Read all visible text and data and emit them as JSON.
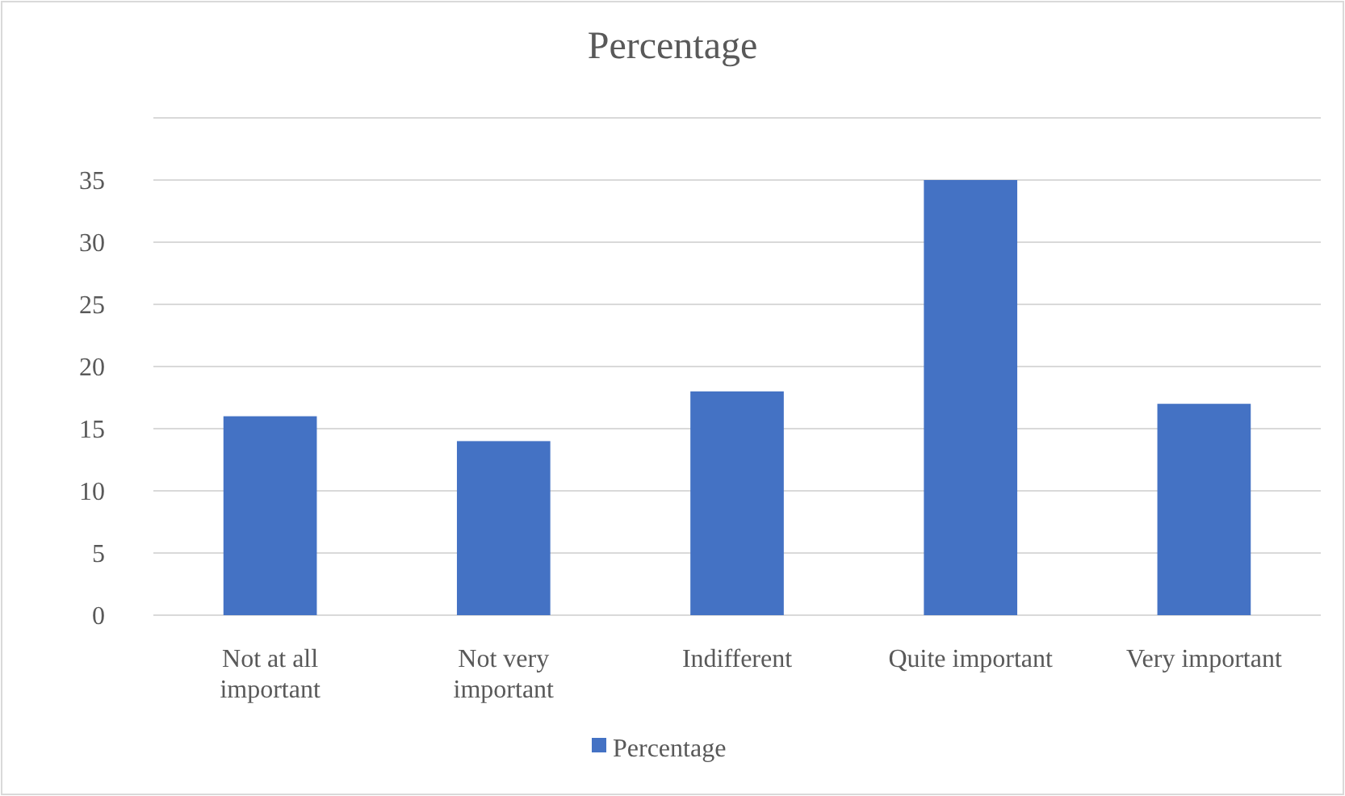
{
  "chart_data": {
    "type": "bar",
    "title": "Percentage",
    "categories": [
      "Not at all important",
      "Not very important",
      "Indifferent",
      "Quite important",
      "Very important"
    ],
    "series": [
      {
        "name": "Percentage",
        "color": "#4472c4",
        "values": [
          16,
          14,
          18,
          35,
          17
        ]
      }
    ],
    "ylim": [
      0,
      40
    ],
    "yticks": [
      0,
      5,
      10,
      15,
      20,
      25,
      30,
      35
    ],
    "grid": "y",
    "legend": "bottom"
  }
}
